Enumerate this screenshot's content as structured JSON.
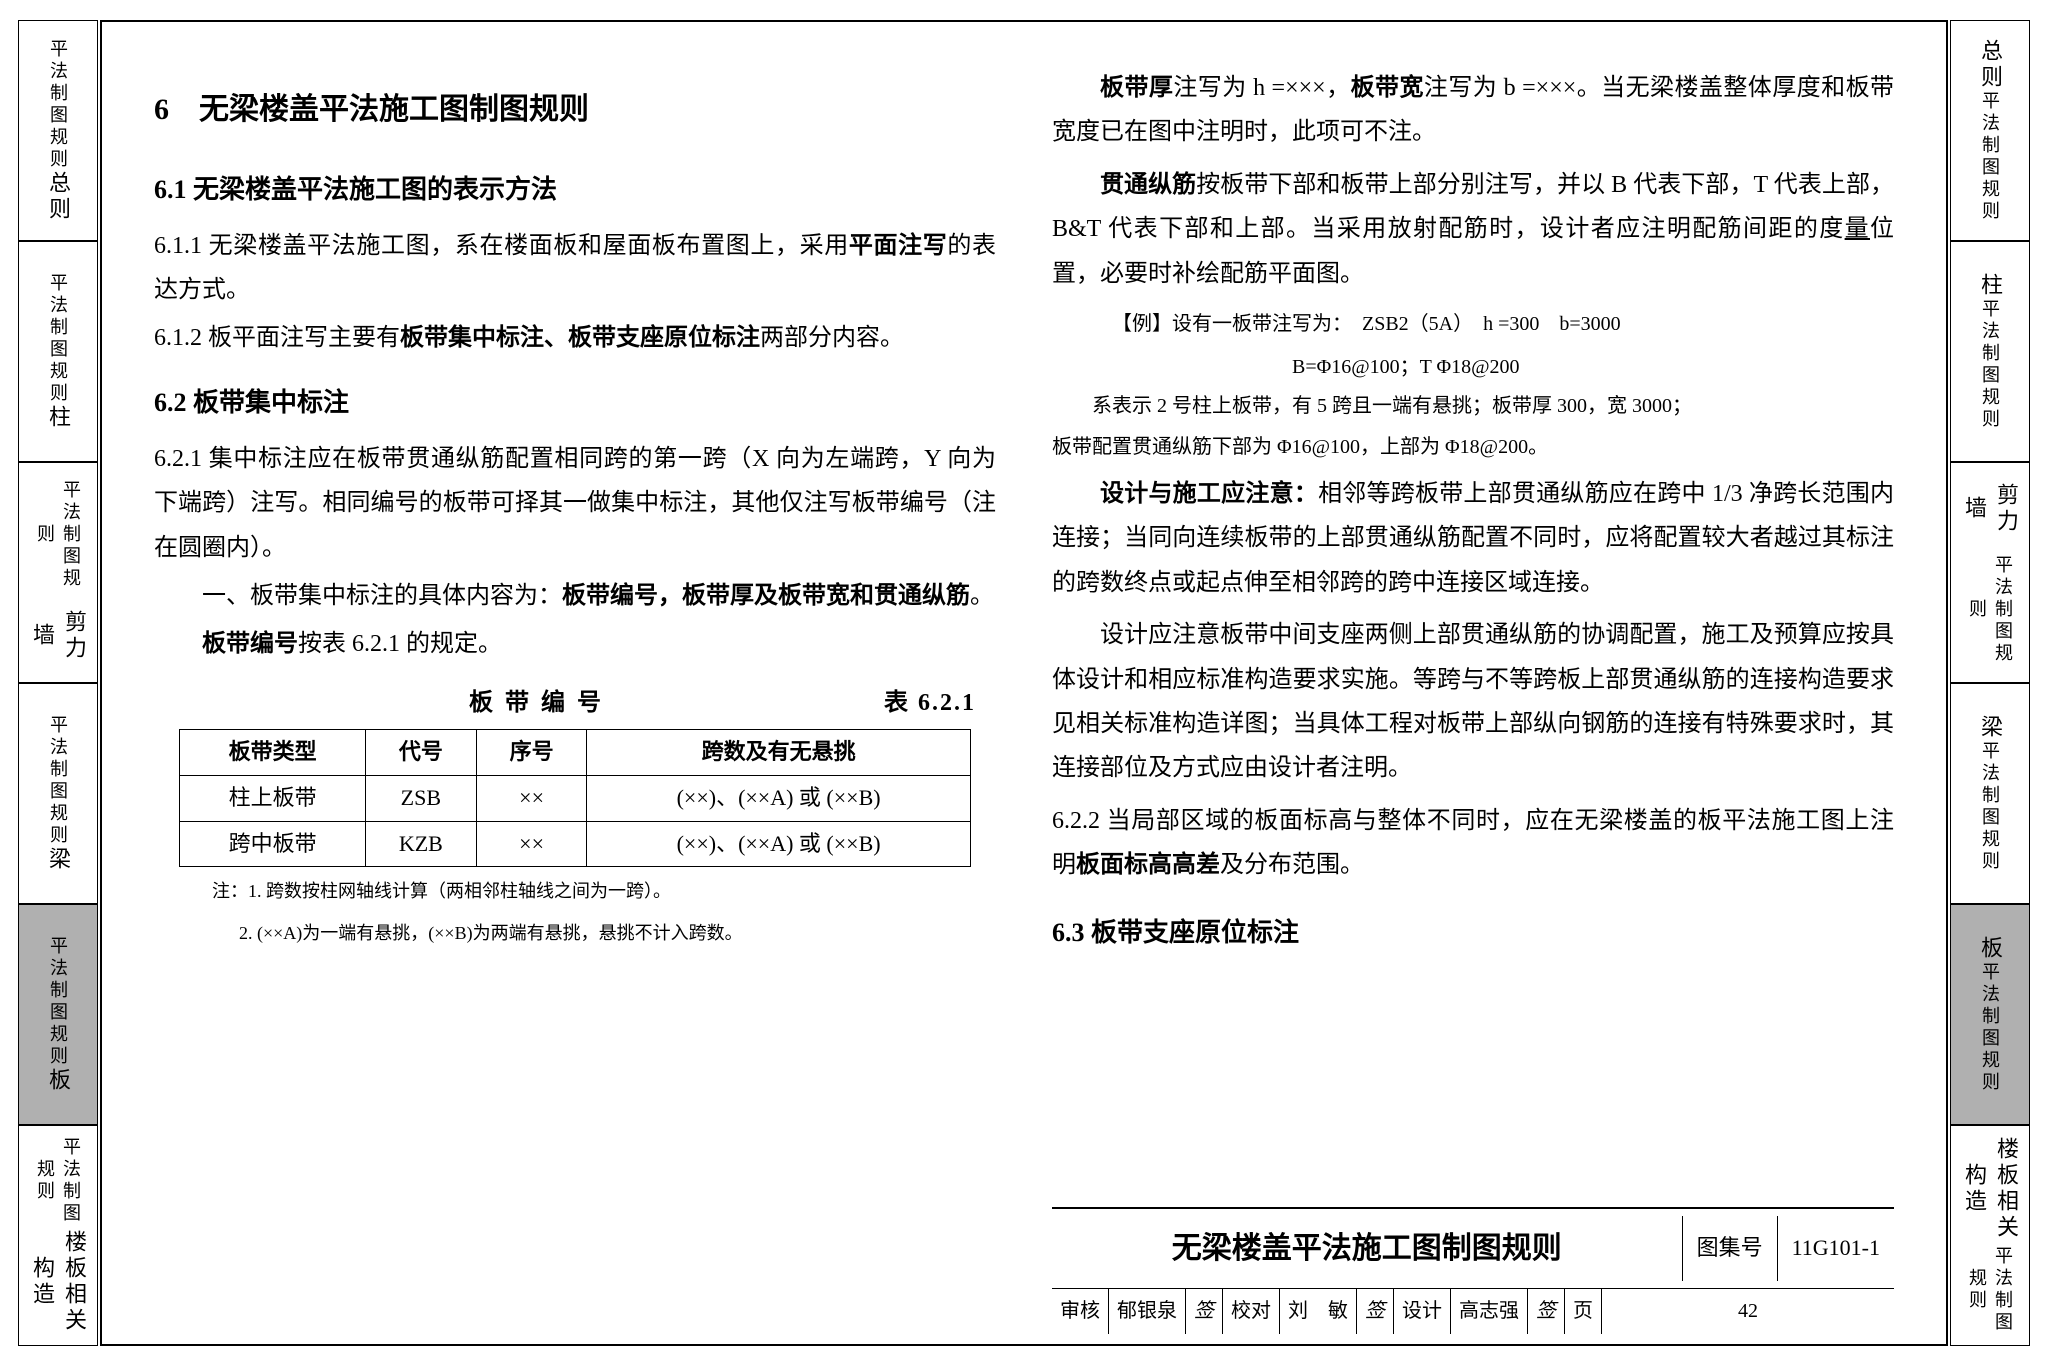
{
  "tabs": [
    {
      "main": "总则",
      "sub": "平法制图规则"
    },
    {
      "main": "柱",
      "sub": "平法制图规则"
    },
    {
      "main": "剪力墙",
      "sub": "平法制图规则"
    },
    {
      "main": "梁",
      "sub": "平法制图规则"
    },
    {
      "main": "板",
      "sub": "平法制图规则",
      "active": true
    },
    {
      "main": "楼板相关构造",
      "sub": "平法制图规则"
    }
  ],
  "left_col": {
    "h1": "6　无梁楼盖平法施工图制图规则",
    "s61": "6.1 无梁楼盖平法施工图的表示方法",
    "p611a": "6.1.1 无梁楼盖平法施工图，系在楼面板和屋面板布置图上，采用",
    "p611b": "平面注写",
    "p611c": "的表达方式。",
    "p612a": "6.1.2 板平面注写主要有",
    "p612b": "板带集中标注、板带支座原位标注",
    "p612c": "两部分内容。",
    "s62": "6.2 板带集中标注",
    "p621": "6.2.1 集中标注应在板带贯通纵筋配置相同跨的第一跨（X 向为左端跨，Y 向为下端跨）注写。相同编号的板带可择其一做集中标注，其他仅注写板带编号（注在圆圈内）。",
    "p621_1a": "一、板带集中标注的具体内容为：",
    "p621_1b": "板带编号，板带厚及板带宽和贯通纵筋",
    "p621_1c": "。",
    "p621_num": "板带编号",
    "p621_num2": "按表 6.2.1 的规定。",
    "table_caption_l": "板带编号",
    "table_caption_r": "表 6.2.1",
    "table": {
      "headers": [
        "板带类型",
        "代号",
        "序号",
        "跨数及有无悬挑"
      ],
      "rows": [
        [
          "柱上板带",
          "ZSB",
          "××",
          "(××)、(××A) 或 (××B)"
        ],
        [
          "跨中板带",
          "KZB",
          "××",
          "(××)、(××A) 或 (××B)"
        ]
      ]
    },
    "note1": "注：1. 跨数按柱网轴线计算（两相邻柱轴线之间为一跨）。",
    "note2": "2. (××A)为一端有悬挑，(××B)为两端有悬挑，悬挑不计入跨数。"
  },
  "right_col": {
    "p_thick_a": "板带厚",
    "p_thick_b": "注写为 h =×××，",
    "p_thick_c": "板带宽",
    "p_thick_d": "注写为 b =×××。当无梁楼盖整体厚度和板带宽度已在图中注明时，此项可不注。",
    "p_rebar_a": "贯通纵筋",
    "p_rebar_b": "按板带下部和板带上部分别注写，并以 B 代表下部，T 代表上部，B&T 代表下部和上部。当采用放射配筋时，设计者应注明配筋间距的度",
    "p_rebar_c": "量",
    "p_rebar_d": "位置，必要时补绘配筋平面图。",
    "ex1": "【例】设有一板带注写为：　ZSB2（5A）　h =300　b=3000",
    "ex2": "B=Φ16@100；T Φ18@200",
    "ex_note1": "系表示 2 号柱上板带，有 5 跨且一端有悬挑；板带厚 300，宽 3000；",
    "ex_note2": "板带配置贯通纵筋下部为 Φ16@100，上部为 Φ18@200。",
    "p_attn_a": "设计与施工应注意：",
    "p_attn_b": "相邻等跨板带上部贯通纵筋应在跨中 1/3 净跨长范围内连接；当同向连续板带的上部贯通纵筋配置不同时，应将配置较大者越过其标注的跨数终点或起点伸至相邻跨的跨中连接区域连接。",
    "p_design": "设计应注意板带中间支座两侧上部贯通纵筋的协调配置，施工及预算应按具体设计和相应标准构造要求实施。等跨与不等跨板上部贯通纵筋的连接构造要求见相关标准构造详图；当具体工程对板带上部纵向钢筋的连接有特殊要求时，其连接部位及方式应由设计者注明。",
    "p622a": "6.2.2 当局部区域的板面标高与整体不同时，应在无梁楼盖的板平法施工图上注明",
    "p622b": "板面标高高差",
    "p622c": "及分布范围。",
    "s63": "6.3 板带支座原位标注"
  },
  "title_block": {
    "main": "无梁楼盖平法施工图制图规则",
    "atlas_label": "图集号",
    "atlas_no": "11G101-1",
    "row2": {
      "c1": "审核",
      "c2": "郁银泉",
      "c3": "校对",
      "c4": "刘　敏",
      "c5": "设计",
      "c6": "高志强",
      "c7": "页",
      "c8": "42"
    }
  }
}
